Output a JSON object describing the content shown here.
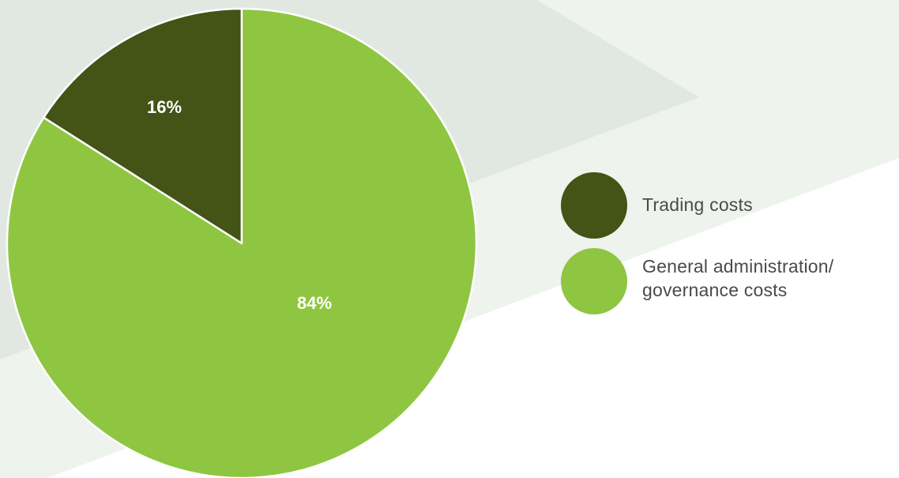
{
  "chart_data": {
    "type": "pie",
    "slices": [
      {
        "name": "Trading costs",
        "value": 16,
        "label": "16%",
        "color": "#445316"
      },
      {
        "name": "General administration/ governance costs",
        "value": 84,
        "label": "84%",
        "color": "#8fc641"
      }
    ],
    "legend_position": "right"
  },
  "legend": {
    "items": [
      {
        "line1": "Trading costs",
        "line2": "",
        "color": "#445316"
      },
      {
        "line1": "General administration/",
        "line2": "governance costs",
        "color": "#8fc641"
      }
    ]
  }
}
